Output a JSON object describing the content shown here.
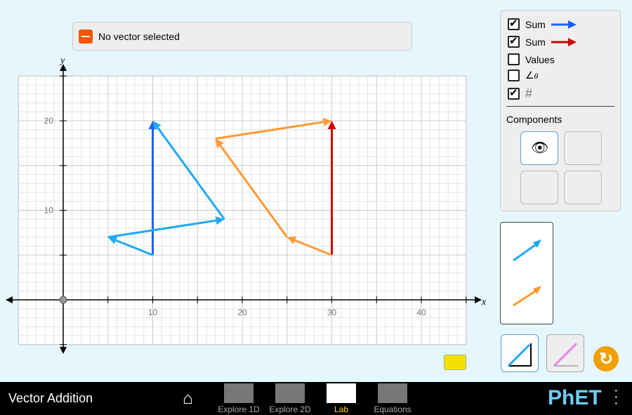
{
  "status": {
    "text": "No vector selected"
  },
  "graph": {
    "x_label": "x",
    "y_label": "y",
    "x_ticks": [
      "10",
      "20",
      "30",
      "40"
    ],
    "y_ticks": [
      "10",
      "20"
    ],
    "xlim": [
      -5,
      45
    ],
    "ylim": [
      -5,
      25
    ],
    "grid": true,
    "vector_sets": [
      {
        "color": "#1eaaf1",
        "sum_color": "#1e5fff",
        "points": [
          [
            10,
            5
          ],
          [
            5,
            7
          ],
          [
            18,
            9
          ],
          [
            10,
            20
          ]
        ]
      },
      {
        "color": "#ff9933",
        "sum_color": "#d00000",
        "points": [
          [
            30,
            5
          ],
          [
            25,
            7
          ],
          [
            17,
            18
          ],
          [
            30,
            20
          ]
        ]
      }
    ]
  },
  "panel": {
    "sum1_label": "Sum",
    "sum1_checked": true,
    "sum2_label": "Sum",
    "sum2_checked": true,
    "values_label": "Values",
    "values_checked": false,
    "angle_checked": false,
    "angle_symbol": "θ",
    "grid_checked": true,
    "components_label": "Components"
  },
  "nav": {
    "title": "Vector Addition",
    "tabs": [
      "Explore 1D",
      "Explore 2D",
      "Lab",
      "Equations"
    ],
    "active": "Lab",
    "brand": "PhET"
  }
}
